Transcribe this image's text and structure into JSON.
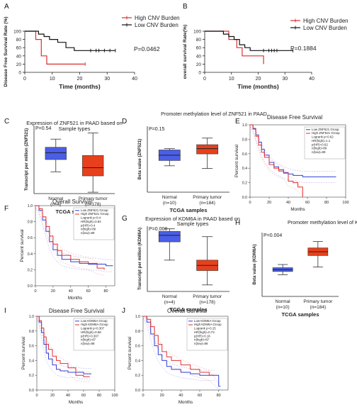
{
  "chart_data": [
    {
      "panel": "A",
      "type": "line",
      "ylabel": "Disease Free Survival Rate (%)",
      "xlabel": "Time (months)",
      "xlim": [
        0,
        40
      ],
      "ylim": [
        0,
        100
      ],
      "xticks": [
        "0",
        "10",
        "20",
        "30",
        "40"
      ],
      "yticks": [
        "0",
        "20",
        "40",
        "60",
        "80",
        "100"
      ],
      "pvalue": "P=0.0462",
      "legend": [
        "High CNV Burden",
        "Low CNV Burden"
      ],
      "legend_position": "top-right",
      "series": [
        {
          "name": "High CNV Burden",
          "color": "#dc2d2d",
          "steps": [
            [
              0,
              100
            ],
            [
              4,
              100
            ],
            [
              4,
              80
            ],
            [
              6,
              80
            ],
            [
              6,
              60
            ],
            [
              6,
              40
            ],
            [
              8,
              40
            ],
            [
              8,
              20
            ],
            [
              22,
              20
            ]
          ],
          "censored": [
            [
              22,
              20
            ]
          ]
        },
        {
          "name": "Low CNV Burden",
          "color": "#111111",
          "steps": [
            [
              0,
              100
            ],
            [
              5,
              100
            ],
            [
              5,
              93
            ],
            [
              7,
              93
            ],
            [
              7,
              87
            ],
            [
              9,
              87
            ],
            [
              9,
              80
            ],
            [
              12,
              80
            ],
            [
              12,
              73
            ],
            [
              15,
              73
            ],
            [
              15,
              60
            ],
            [
              18,
              60
            ],
            [
              18,
              53
            ],
            [
              33,
              53
            ]
          ],
          "censored": [
            [
              24,
              53
            ],
            [
              26,
              53
            ],
            [
              27,
              53
            ],
            [
              29,
              53
            ],
            [
              31,
              53
            ],
            [
              33,
              53
            ]
          ]
        }
      ]
    },
    {
      "panel": "B",
      "type": "line",
      "ylabel": "overall survival Rate(%)",
      "xlabel": "Time (months)",
      "xlim": [
        0,
        40
      ],
      "ylim": [
        0,
        100
      ],
      "xticks": [
        "0",
        "10",
        "20",
        "30",
        "40"
      ],
      "yticks": [
        "0",
        "20",
        "40",
        "60",
        "80",
        "100"
      ],
      "pvalue": "P=0.1884",
      "legend": [
        "High CNV Burden",
        "Low CNV Burden"
      ],
      "legend_position": "outside-right",
      "series": [
        {
          "name": "High CNV Burden",
          "color": "#dc2d2d",
          "steps": [
            [
              0,
              100
            ],
            [
              9,
              100
            ],
            [
              9,
              80
            ],
            [
              12,
              80
            ],
            [
              12,
              60
            ],
            [
              14,
              60
            ],
            [
              14,
              40
            ],
            [
              22,
              40
            ],
            [
              22,
              20
            ]
          ],
          "censored": []
        },
        {
          "name": "Low CNV Burden",
          "color": "#111111",
          "steps": [
            [
              0,
              100
            ],
            [
              7,
              100
            ],
            [
              7,
              93
            ],
            [
              9,
              93
            ],
            [
              9,
              87
            ],
            [
              11,
              87
            ],
            [
              11,
              80
            ],
            [
              13,
              80
            ],
            [
              13,
              67
            ],
            [
              15,
              67
            ],
            [
              15,
              60
            ],
            [
              17,
              60
            ],
            [
              17,
              53
            ],
            [
              33,
              53
            ]
          ],
          "censored": [
            [
              22,
              53
            ],
            [
              24,
              53
            ],
            [
              25,
              53
            ],
            [
              26,
              53
            ],
            [
              27,
              53
            ],
            [
              33,
              53
            ]
          ]
        }
      ]
    },
    {
      "panel": "C",
      "type": "box",
      "title": "Expression of ZNF521 in PAAD based on Sample types",
      "ylabel": "Transcript per million (ZNF521)",
      "xlabel": "TCGA samples",
      "pvalue": "P=0.54",
      "ylim": [
        0,
        10
      ],
      "categories": [
        "Normal (n=4)",
        "Primary tumor (n=178)"
      ],
      "boxes": [
        {
          "min": 3.2,
          "q1": 5.0,
          "median": 6.0,
          "q3": 6.8,
          "max": 8.0,
          "color": "#4a5ee8"
        },
        {
          "min": 0.2,
          "q1": 2.6,
          "median": 3.8,
          "q3": 5.6,
          "max": 8.9,
          "color": "#e8401c"
        }
      ]
    },
    {
      "panel": "D",
      "type": "box",
      "title": "Promoter methylation level of ZNF521 in PAAD",
      "ylabel": "Beta value (ZNF521)",
      "xlabel": "TCGA samples",
      "pvalue": "P=0.15",
      "ylim": [
        0,
        10
      ],
      "categories": [
        "Normal (n=10)",
        "Primary tumor (n=184)"
      ],
      "boxes": [
        {
          "min": 4.0,
          "q1": 4.8,
          "median": 5.6,
          "q3": 6.4,
          "max": 6.6,
          "color": "#4a5ee8"
        },
        {
          "min": 3.6,
          "q1": 5.8,
          "median": 6.6,
          "q3": 7.2,
          "max": 8.2,
          "color": "#e8401c"
        }
      ]
    },
    {
      "panel": "E",
      "type": "line",
      "title": "Disease Free Survival",
      "ylabel": "Percent survival",
      "xlabel": "Months",
      "xlim": [
        0,
        100
      ],
      "ylim": [
        0,
        1
      ],
      "xticks": [
        "0",
        "20",
        "40",
        "60",
        "80",
        "100"
      ],
      "yticks": [
        "0.0",
        "0.2",
        "0.4",
        "0.6",
        "0.8",
        "1.0"
      ],
      "legend": [
        "Low ZNF521 Group",
        "High ZNF521 Group"
      ],
      "stats": [
        "Logrank p=0.62",
        "HR(high)=1.1",
        "p(HR)=0.62",
        "n(high)=89",
        "n(low)=89"
      ],
      "legend_position": "top-right",
      "series": [
        {
          "name": "Low ZNF521 Group",
          "color": "#3040d8",
          "points": [
            [
              0,
              1
            ],
            [
              3,
              0.95
            ],
            [
              6,
              0.86
            ],
            [
              9,
              0.76
            ],
            [
              12,
              0.66
            ],
            [
              15,
              0.58
            ],
            [
              20,
              0.48
            ],
            [
              25,
              0.42
            ],
            [
              30,
              0.38
            ],
            [
              35,
              0.34
            ],
            [
              40,
              0.32
            ],
            [
              45,
              0.3
            ],
            [
              55,
              0.28
            ],
            [
              90,
              0.28
            ]
          ]
        },
        {
          "name": "High ZNF521 Group",
          "color": "#e03030",
          "points": [
            [
              0,
              1
            ],
            [
              3,
              0.94
            ],
            [
              6,
              0.84
            ],
            [
              9,
              0.72
            ],
            [
              12,
              0.62
            ],
            [
              15,
              0.55
            ],
            [
              20,
              0.45
            ],
            [
              25,
              0.4
            ],
            [
              30,
              0.36
            ],
            [
              35,
              0.33
            ],
            [
              40,
              0.22
            ],
            [
              45,
              0.2
            ],
            [
              50,
              0.14
            ],
            [
              55,
              0.0
            ]
          ]
        }
      ]
    },
    {
      "panel": "F",
      "type": "line",
      "title": "Overall Survival",
      "ylabel": "Percent survival",
      "xlabel": "Months",
      "xlim": [
        0,
        90
      ],
      "ylim": [
        0,
        1
      ],
      "xticks": [
        "0",
        "20",
        "40",
        "60",
        "80"
      ],
      "yticks": [
        "0.0",
        "0.2",
        "0.4",
        "0.6",
        "0.8",
        "1.0"
      ],
      "legend": [
        "Low ZNF521 Group",
        "High ZNF521 Group"
      ],
      "stats": [
        "Logrank p=0.4",
        "HR(high)=0.84",
        "p(HR)=0.4",
        "n(high)=89",
        "n(low)=89"
      ],
      "legend_position": "top-right",
      "series": [
        {
          "name": "Low ZNF521 Group",
          "color": "#3040d8",
          "points": [
            [
              0,
              1
            ],
            [
              4,
              0.94
            ],
            [
              8,
              0.82
            ],
            [
              12,
              0.68
            ],
            [
              16,
              0.55
            ],
            [
              20,
              0.45
            ],
            [
              25,
              0.38
            ],
            [
              30,
              0.33
            ],
            [
              40,
              0.3
            ],
            [
              50,
              0.28
            ],
            [
              60,
              0.27
            ],
            [
              70,
              0.27
            ],
            [
              80,
              0.25
            ],
            [
              88,
              0.25
            ]
          ]
        },
        {
          "name": "High ZNF521 Group",
          "color": "#e03030",
          "points": [
            [
              0,
              1
            ],
            [
              4,
              0.96
            ],
            [
              8,
              0.86
            ],
            [
              12,
              0.74
            ],
            [
              16,
              0.62
            ],
            [
              20,
              0.52
            ],
            [
              25,
              0.44
            ],
            [
              30,
              0.38
            ],
            [
              40,
              0.33
            ],
            [
              50,
              0.3
            ],
            [
              60,
              0.28
            ],
            [
              70,
              0.22
            ],
            [
              78,
              0.2
            ]
          ]
        }
      ]
    },
    {
      "panel": "G",
      "type": "box",
      "title": "Expression of KDM6A in PAAD based on Sample types",
      "ylabel": "Transcript per million (KDM6A)",
      "xlabel": "TCGA samples",
      "pvalue": "P=0.008",
      "ylim": [
        0,
        10
      ],
      "categories": [
        "Normal (n=4)",
        "Primary tumor (n=178)"
      ],
      "boxes": [
        {
          "min": 4.8,
          "q1": 7.6,
          "median": 8.6,
          "q3": 9.2,
          "max": 9.6,
          "color": "#4a5ee8"
        },
        {
          "min": 1.0,
          "q1": 3.2,
          "median": 4.0,
          "q3": 4.8,
          "max": 8.4,
          "color": "#e8401c"
        }
      ]
    },
    {
      "panel": "H",
      "type": "box",
      "title": "Promoter methylation level of KDM6A in PAAD",
      "ylabel": "Beta value (KDM6A)",
      "xlabel": "TCGA samples",
      "pvalue": "P=0.004",
      "ylim": [
        0,
        10
      ],
      "categories": [
        "Normal (n=10)",
        "Primary tumor (n=184)"
      ],
      "boxes": [
        {
          "min": 3.4,
          "q1": 3.9,
          "median": 4.2,
          "q3": 4.5,
          "max": 5.0,
          "color": "#4a5ee8"
        },
        {
          "min": 4.6,
          "q1": 6.4,
          "median": 7.0,
          "q3": 7.6,
          "max": 8.6,
          "color": "#e8401c"
        }
      ]
    },
    {
      "panel": "I",
      "type": "line",
      "title": "Disease Free Survival",
      "ylabel": "Percent survival",
      "xlabel": "Months",
      "xlim": [
        0,
        100
      ],
      "ylim": [
        0,
        1
      ],
      "xticks": [
        "0",
        "20",
        "40",
        "60",
        "80",
        "100"
      ],
      "yticks": [
        "0.0",
        "0.2",
        "0.4",
        "0.6",
        "0.8",
        "1.0"
      ],
      "legend": [
        "Low KDM6A Group",
        "High KDM6A Group"
      ],
      "stats": [
        "Logrank p=0.307",
        "HR(high)=0.68",
        "p(HR)=0.307",
        "n(high)=87",
        "n(low)=88"
      ],
      "legend_position": "top-right",
      "series": [
        {
          "name": "Low KDM6A Group",
          "color": "#3040d8",
          "points": [
            [
              0,
              1
            ],
            [
              3,
              0.92
            ],
            [
              6,
              0.78
            ],
            [
              9,
              0.62
            ],
            [
              12,
              0.5
            ],
            [
              15,
              0.42
            ],
            [
              20,
              0.34
            ],
            [
              25,
              0.28
            ],
            [
              30,
              0.26
            ],
            [
              40,
              0.24
            ],
            [
              50,
              0.24
            ],
            [
              60,
              0.22
            ],
            [
              70,
              0.22
            ]
          ]
        },
        {
          "name": "High KDM6A Group",
          "color": "#e03030",
          "points": [
            [
              0,
              1
            ],
            [
              3,
              0.94
            ],
            [
              6,
              0.84
            ],
            [
              9,
              0.72
            ],
            [
              12,
              0.62
            ],
            [
              15,
              0.55
            ],
            [
              20,
              0.46
            ],
            [
              25,
              0.4
            ],
            [
              30,
              0.36
            ],
            [
              40,
              0.3
            ],
            [
              50,
              0.2
            ],
            [
              60,
              0.18
            ],
            [
              68,
              0.18
            ]
          ]
        }
      ]
    },
    {
      "panel": "J",
      "type": "line",
      "title": "Overall Survival",
      "ylabel": "Percent survival",
      "xlabel": "Months",
      "xlim": [
        0,
        90
      ],
      "ylim": [
        0,
        1
      ],
      "xticks": [
        "0",
        "20",
        "40",
        "60",
        "80"
      ],
      "yticks": [
        "0.0",
        "0.2",
        "0.4",
        "0.6",
        "0.8",
        "1.0"
      ],
      "legend": [
        "Low KDM6A Group",
        "High KDM6A Group"
      ],
      "stats": [
        "Logrank p=0.15",
        "HR(high)=0.73",
        "p(HR)=0.16",
        "n(high)=87",
        "n(low)=88"
      ],
      "legend_position": "top-right",
      "series": [
        {
          "name": "Low KDM6A Group",
          "color": "#3040d8",
          "points": [
            [
              0,
              1
            ],
            [
              4,
              0.92
            ],
            [
              8,
              0.76
            ],
            [
              12,
              0.6
            ],
            [
              16,
              0.48
            ],
            [
              20,
              0.4
            ],
            [
              25,
              0.32
            ],
            [
              30,
              0.28
            ],
            [
              40,
              0.24
            ],
            [
              50,
              0.22
            ],
            [
              60,
              0.2
            ],
            [
              70,
              0.2
            ],
            [
              80,
              0.05
            ],
            [
              82,
              0.05
            ]
          ]
        },
        {
          "name": "High KDM6A Group",
          "color": "#e03030",
          "points": [
            [
              0,
              1
            ],
            [
              4,
              0.96
            ],
            [
              8,
              0.86
            ],
            [
              12,
              0.74
            ],
            [
              16,
              0.62
            ],
            [
              20,
              0.52
            ],
            [
              25,
              0.45
            ],
            [
              30,
              0.4
            ],
            [
              40,
              0.34
            ],
            [
              50,
              0.28
            ],
            [
              60,
              0.24
            ],
            [
              70,
              0.2
            ],
            [
              76,
              0.2
            ]
          ]
        }
      ]
    }
  ]
}
